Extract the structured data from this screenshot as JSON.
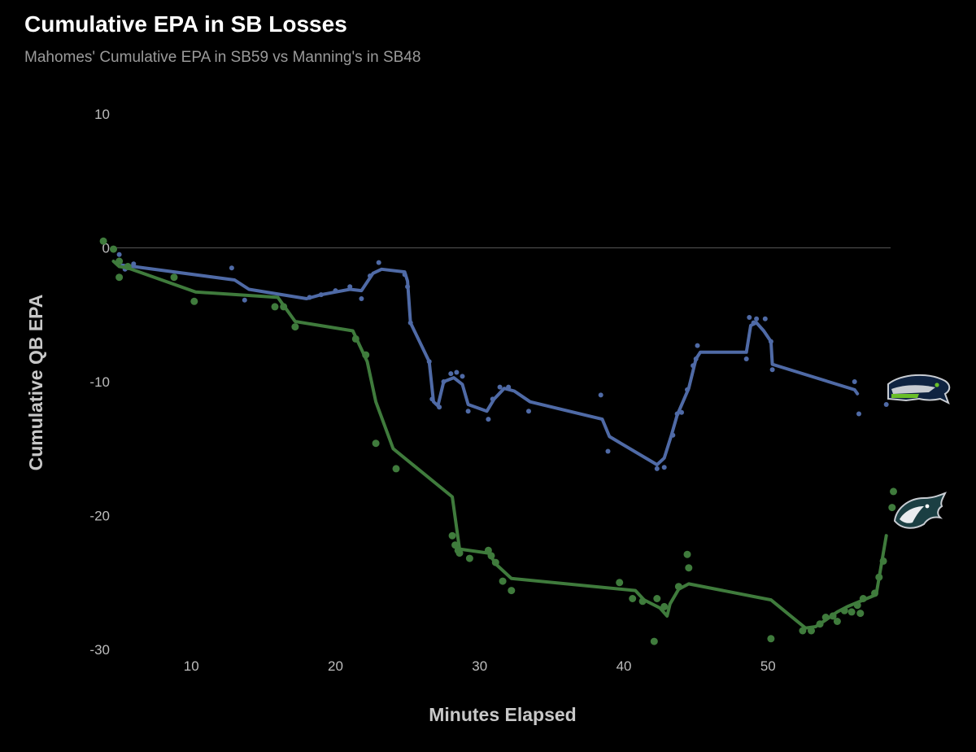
{
  "chart_data": {
    "type": "line",
    "title": "Cumulative EPA in SB Losses",
    "subtitle": "Mahomes' Cumulative EPA in SB59 vs Manning's in SB48",
    "xlabel": "Minutes Elapsed",
    "ylabel": "Cumulative QB EPA",
    "xlim": [
      3.5,
      58.5
    ],
    "ylim": [
      -31,
      11
    ],
    "xticks": [
      10,
      20,
      30,
      40,
      50
    ],
    "yticks": [
      10,
      0,
      -10,
      -20,
      -30
    ],
    "reference_line": 0,
    "grid": false,
    "legend": "team logos at line ends (right side)",
    "series": [
      {
        "color": "#4f6aa6",
        "logo": "seahawks-logo",
        "line": [
          [
            5.2,
            -1.3
          ],
          [
            6,
            -1.4
          ],
          [
            13,
            -2.4
          ],
          [
            14,
            -3.1
          ],
          [
            18,
            -3.8
          ],
          [
            19,
            -3.5
          ],
          [
            20,
            -3.3
          ],
          [
            21,
            -3.1
          ],
          [
            21.8,
            -3.2
          ],
          [
            22.6,
            -1.9
          ],
          [
            23.2,
            -1.6
          ],
          [
            24.8,
            -1.8
          ],
          [
            25,
            -2.5
          ],
          [
            25.2,
            -5.6
          ],
          [
            26.5,
            -8.5
          ],
          [
            26.8,
            -11.5
          ],
          [
            27.1,
            -11.8
          ],
          [
            27.5,
            -10
          ],
          [
            28.2,
            -9.7
          ],
          [
            28.8,
            -10.2
          ],
          [
            29.2,
            -11.7
          ],
          [
            30.5,
            -12.2
          ],
          [
            31,
            -11.3
          ],
          [
            31.7,
            -10.5
          ],
          [
            32.4,
            -10.7
          ],
          [
            33.5,
            -11.5
          ],
          [
            38.5,
            -12.8
          ],
          [
            39,
            -14.1
          ],
          [
            42.3,
            -16.2
          ],
          [
            42.8,
            -15.7
          ],
          [
            43.3,
            -14
          ],
          [
            43.7,
            -12.5
          ],
          [
            44.5,
            -10.5
          ],
          [
            45,
            -8.3
          ],
          [
            45.3,
            -7.8
          ],
          [
            48.5,
            -7.8
          ],
          [
            48.8,
            -5.8
          ],
          [
            49.2,
            -5.6
          ],
          [
            49.7,
            -6.2
          ],
          [
            50.2,
            -7
          ],
          [
            50.3,
            -8.7
          ],
          [
            56,
            -10.6
          ],
          [
            56.2,
            -10.9
          ]
        ],
        "points": [
          [
            5,
            -0.5
          ],
          [
            5.4,
            -1.6
          ],
          [
            6,
            -1.2
          ],
          [
            12.8,
            -1.5
          ],
          [
            13.7,
            -3.9
          ],
          [
            18.2,
            -3.7
          ],
          [
            19,
            -3.5
          ],
          [
            20,
            -3.2
          ],
          [
            21,
            -2.9
          ],
          [
            21.8,
            -3.8
          ],
          [
            22.4,
            -2.1
          ],
          [
            23,
            -1.1
          ],
          [
            24.8,
            -2
          ],
          [
            25,
            -2.9
          ],
          [
            25.2,
            -5.6
          ],
          [
            26.5,
            -8.5
          ],
          [
            26.7,
            -11.3
          ],
          [
            27.2,
            -11.9
          ],
          [
            27.5,
            -10
          ],
          [
            28,
            -9.4
          ],
          [
            28.4,
            -9.3
          ],
          [
            28.8,
            -9.6
          ],
          [
            29.2,
            -12.2
          ],
          [
            30.6,
            -12.8
          ],
          [
            30.9,
            -11.3
          ],
          [
            31.4,
            -10.4
          ],
          [
            32,
            -10.4
          ],
          [
            33.4,
            -12.2
          ],
          [
            38.4,
            -11
          ],
          [
            38.9,
            -15.2
          ],
          [
            42.3,
            -16.5
          ],
          [
            42.8,
            -16.4
          ],
          [
            43.4,
            -14
          ],
          [
            43.7,
            -12.4
          ],
          [
            44,
            -12.3
          ],
          [
            44.4,
            -10.6
          ],
          [
            44.8,
            -8.8
          ],
          [
            45,
            -8.3
          ],
          [
            45.1,
            -7.3
          ],
          [
            48.5,
            -8.3
          ],
          [
            48.7,
            -5.2
          ],
          [
            49,
            -5.6
          ],
          [
            49.2,
            -5.3
          ],
          [
            49.8,
            -5.3
          ],
          [
            50.2,
            -7
          ],
          [
            50.3,
            -9.1
          ],
          [
            56,
            -10
          ],
          [
            56.3,
            -12.4
          ],
          [
            58.2,
            -11.7
          ]
        ]
      },
      {
        "color": "#3f7b3c",
        "logo": "eagles-logo",
        "line": [
          [
            4.6,
            -1
          ],
          [
            5,
            -1.4
          ],
          [
            5.6,
            -1.5
          ],
          [
            10.3,
            -3.3
          ],
          [
            16,
            -3.7
          ],
          [
            17.2,
            -5.5
          ],
          [
            21.2,
            -6.2
          ],
          [
            22.2,
            -8.5
          ],
          [
            22.8,
            -11.5
          ],
          [
            24,
            -15
          ],
          [
            28.1,
            -18.6
          ],
          [
            28.6,
            -22.5
          ],
          [
            30.6,
            -22.8
          ],
          [
            31.2,
            -23.7
          ],
          [
            32.2,
            -24.7
          ],
          [
            40.8,
            -25.6
          ],
          [
            41.4,
            -26.3
          ],
          [
            42.5,
            -26.9
          ],
          [
            43,
            -27.5
          ],
          [
            43.2,
            -26.6
          ],
          [
            43.8,
            -25.5
          ],
          [
            44.5,
            -25.1
          ],
          [
            50.2,
            -26.3
          ],
          [
            51.8,
            -27.7
          ],
          [
            52.6,
            -28.4
          ],
          [
            53.3,
            -28.3
          ],
          [
            54,
            -27.8
          ],
          [
            54.8,
            -27.2
          ],
          [
            55.5,
            -26.8
          ],
          [
            57.5,
            -25.9
          ],
          [
            58.2,
            -21.5
          ]
        ],
        "points": [
          [
            3.9,
            0.5
          ],
          [
            4.6,
            -0.1
          ],
          [
            5,
            -1
          ],
          [
            5,
            -2.2
          ],
          [
            5.6,
            -1.4
          ],
          [
            8.8,
            -2.2
          ],
          [
            10.2,
            -4
          ],
          [
            15.8,
            -4.4
          ],
          [
            16.4,
            -4.4
          ],
          [
            17.2,
            -5.9
          ],
          [
            21.4,
            -6.8
          ],
          [
            22.1,
            -8
          ],
          [
            22.8,
            -14.6
          ],
          [
            24.2,
            -16.5
          ],
          [
            28.1,
            -21.5
          ],
          [
            28.3,
            -22.2
          ],
          [
            28.5,
            -22.6
          ],
          [
            28.6,
            -22.8
          ],
          [
            29.3,
            -23.2
          ],
          [
            30.6,
            -22.6
          ],
          [
            30.8,
            -23
          ],
          [
            31.1,
            -23.5
          ],
          [
            31.6,
            -24.9
          ],
          [
            32.2,
            -25.6
          ],
          [
            39.7,
            -25
          ],
          [
            40.6,
            -26.2
          ],
          [
            41.3,
            -26.4
          ],
          [
            42.1,
            -29.4
          ],
          [
            42.3,
            -26.2
          ],
          [
            42.8,
            -26.8
          ],
          [
            43.8,
            -25.3
          ],
          [
            44.4,
            -22.9
          ],
          [
            44.5,
            -23.9
          ],
          [
            50.2,
            -29.2
          ],
          [
            52.4,
            -28.6
          ],
          [
            53,
            -28.6
          ],
          [
            53.6,
            -28.1
          ],
          [
            54,
            -27.6
          ],
          [
            54.5,
            -27.5
          ],
          [
            54.8,
            -27.9
          ],
          [
            55.3,
            -27.1
          ],
          [
            55.8,
            -27.2
          ],
          [
            56.2,
            -26.7
          ],
          [
            56.4,
            -27.3
          ],
          [
            56.6,
            -26.2
          ],
          [
            57.4,
            -25.8
          ],
          [
            57.7,
            -24.6
          ],
          [
            58,
            -23.4
          ],
          [
            58.6,
            -19.4
          ],
          [
            58.7,
            -18.2
          ]
        ]
      }
    ]
  }
}
